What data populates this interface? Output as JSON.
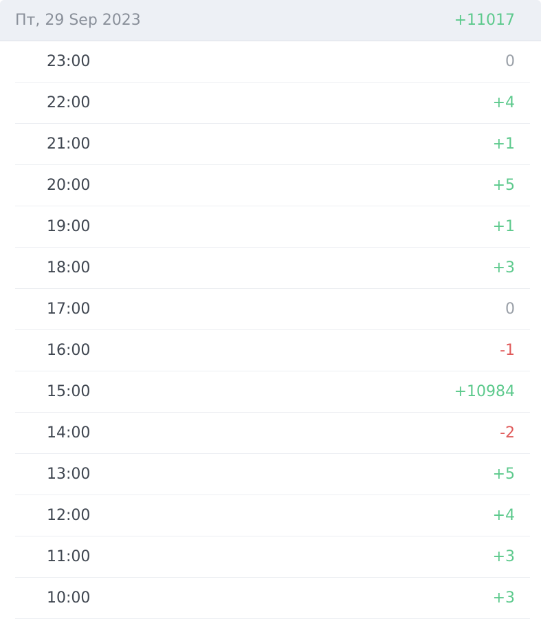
{
  "header": {
    "date": "Пт, 29 Sep 2023",
    "total": "+11017"
  },
  "colors": {
    "positive": "#5cc98c",
    "negative": "#e05a5a",
    "zero": "#9aa0a8"
  },
  "rows": [
    {
      "time": "23:00",
      "value": "0"
    },
    {
      "time": "22:00",
      "value": "+4"
    },
    {
      "time": "21:00",
      "value": "+1"
    },
    {
      "time": "20:00",
      "value": "+5"
    },
    {
      "time": "19:00",
      "value": "+1"
    },
    {
      "time": "18:00",
      "value": "+3"
    },
    {
      "time": "17:00",
      "value": "0"
    },
    {
      "time": "16:00",
      "value": "-1"
    },
    {
      "time": "15:00",
      "value": "+10984"
    },
    {
      "time": "14:00",
      "value": "-2"
    },
    {
      "time": "13:00",
      "value": "+5"
    },
    {
      "time": "12:00",
      "value": "+4"
    },
    {
      "time": "11:00",
      "value": "+3"
    },
    {
      "time": "10:00",
      "value": "+3"
    }
  ]
}
